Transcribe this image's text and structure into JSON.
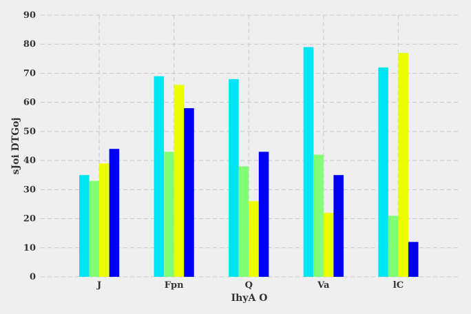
{
  "chart_data": {
    "type": "bar",
    "title": "",
    "xlabel": "IhyA O",
    "ylabel": "sJoi DTGoj",
    "categories": [
      "J",
      "Fpn",
      "Q",
      "Va",
      "lC"
    ],
    "series": [
      {
        "values": [
          35,
          69,
          68,
          79,
          72
        ],
        "color": "#00e5f2"
      },
      {
        "values": [
          33,
          43,
          38,
          42,
          21
        ],
        "color": "#80ff77"
      },
      {
        "values": [
          39,
          66,
          26,
          22,
          77
        ],
        "color": "#ebff00"
      },
      {
        "values": [
          44,
          58,
          43,
          35,
          12
        ],
        "color": "#0000f2"
      }
    ],
    "ylim": [
      0,
      90
    ],
    "yticks": [
      0,
      10,
      20,
      30,
      40,
      50,
      60,
      70,
      80,
      90
    ],
    "grid": true,
    "legend": "none"
  },
  "colors": {
    "background": "#efefef",
    "grid": "#c8c8c8",
    "text": "#333333"
  }
}
